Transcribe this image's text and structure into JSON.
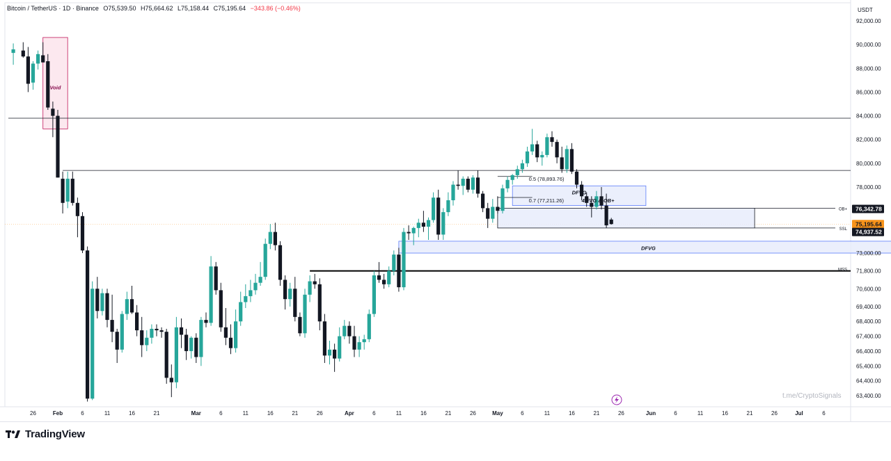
{
  "header": {
    "symbol": "Bitcoin / TetherUS · 1D · Binance",
    "open": "O75,539.50",
    "high": "H75,664.62",
    "low": "L75,158.44",
    "close": "C75,195.64",
    "change": "−343.86 (−0.46%)"
  },
  "brand": {
    "name": "TradingView"
  },
  "watermark": "t.me/CryptoSignals",
  "colors": {
    "up": "#26a69a",
    "down": "#131722",
    "zone_fill": "#e8ecfb",
    "zone_border": "#5b7cfa",
    "void_fill": "#fce4ec",
    "void_border": "#c2185b",
    "price_tag": "#f7931a"
  },
  "chart_data": {
    "type": "candlestick",
    "symbol": "BTC/USDT",
    "interval": "1D",
    "y_unit": "USDT",
    "ylim": [
      62600,
      93400
    ],
    "y_ticks": [
      92000,
      90000,
      88000,
      86000,
      84000,
      82000,
      80000,
      78000,
      73000,
      71800,
      70600,
      69400,
      68400,
      67400,
      66400,
      65400,
      64400,
      63400
    ],
    "y_tick_labels": [
      "92,000.00",
      "90,000.00",
      "88,000.00",
      "86,000.00",
      "84,000.00",
      "82,000.00",
      "80,000.00",
      "78,000.00",
      "73,000.00",
      "71,800.00",
      "70,600.00",
      "69,400.00",
      "68,400.00",
      "67,400.00",
      "66,400.00",
      "65,400.00",
      "64,400.00",
      "63,400.00"
    ],
    "x_ticks": [
      {
        "day": -5,
        "label": "26"
      },
      {
        "day": 0,
        "label": "Feb"
      },
      {
        "day": 5,
        "label": "6"
      },
      {
        "day": 10,
        "label": "11"
      },
      {
        "day": 15,
        "label": "16"
      },
      {
        "day": 20,
        "label": "21"
      },
      {
        "day": 28,
        "label": "Mar"
      },
      {
        "day": 33,
        "label": "6"
      },
      {
        "day": 38,
        "label": "11"
      },
      {
        "day": 43,
        "label": "16"
      },
      {
        "day": 48,
        "label": "21"
      },
      {
        "day": 53,
        "label": "26"
      },
      {
        "day": 59,
        "label": "Apr"
      },
      {
        "day": 64,
        "label": "6"
      },
      {
        "day": 69,
        "label": "11"
      },
      {
        "day": 74,
        "label": "16"
      },
      {
        "day": 79,
        "label": "21"
      },
      {
        "day": 84,
        "label": "26"
      },
      {
        "day": 89,
        "label": "May"
      },
      {
        "day": 94,
        "label": "6"
      },
      {
        "day": 99,
        "label": "11"
      },
      {
        "day": 104,
        "label": "16"
      },
      {
        "day": 109,
        "label": "21"
      },
      {
        "day": 114,
        "label": "26"
      },
      {
        "day": 120,
        "label": "Jun"
      },
      {
        "day": 125,
        "label": "6"
      },
      {
        "day": 130,
        "label": "11"
      },
      {
        "day": 135,
        "label": "16"
      },
      {
        "day": 140,
        "label": "21"
      },
      {
        "day": 145,
        "label": "26"
      },
      {
        "day": 150,
        "label": "Jul"
      },
      {
        "day": 155,
        "label": "6"
      }
    ],
    "candles": [
      {
        "d": -9,
        "o": 89300,
        "h": 90100,
        "l": 88300,
        "c": 89600
      },
      {
        "d": -7,
        "o": 89500,
        "h": 90200,
        "l": 88900,
        "c": 89000
      },
      {
        "d": -6,
        "o": 89000,
        "h": 89800,
        "l": 86000,
        "c": 86700
      },
      {
        "d": -5,
        "o": 86800,
        "h": 88600,
        "l": 86200,
        "c": 88400
      },
      {
        "d": -4,
        "o": 88400,
        "h": 89500,
        "l": 87900,
        "c": 89200
      },
      {
        "d": -3,
        "o": 89100,
        "h": 90200,
        "l": 88500,
        "c": 88500
      },
      {
        "d": -2,
        "o": 88600,
        "h": 89200,
        "l": 84500,
        "c": 84700
      },
      {
        "d": -1,
        "o": 84600,
        "h": 85200,
        "l": 82200,
        "c": 84000
      },
      {
        "d": 0,
        "o": 84000,
        "h": 84500,
        "l": 78800,
        "c": 78800
      },
      {
        "d": 1,
        "o": 78700,
        "h": 79300,
        "l": 76000,
        "c": 76800
      },
      {
        "d": 2,
        "o": 76900,
        "h": 79300,
        "l": 76400,
        "c": 78700
      },
      {
        "d": 3,
        "o": 78700,
        "h": 79300,
        "l": 76600,
        "c": 76800
      },
      {
        "d": 4,
        "o": 76800,
        "h": 77200,
        "l": 74200,
        "c": 75800
      },
      {
        "d": 5,
        "o": 75800,
        "h": 76100,
        "l": 73000,
        "c": 73200
      },
      {
        "d": 6,
        "o": 73200,
        "h": 73500,
        "l": 63000,
        "c": 63200
      },
      {
        "d": 7,
        "o": 63200,
        "h": 71100,
        "l": 63100,
        "c": 70600
      },
      {
        "d": 8,
        "o": 70600,
        "h": 71400,
        "l": 68600,
        "c": 69100
      },
      {
        "d": 9,
        "o": 69100,
        "h": 70600,
        "l": 68800,
        "c": 70300
      },
      {
        "d": 10,
        "o": 70300,
        "h": 70600,
        "l": 68000,
        "c": 68500
      },
      {
        "d": 11,
        "o": 68500,
        "h": 70200,
        "l": 67000,
        "c": 67700
      },
      {
        "d": 12,
        "o": 67700,
        "h": 67900,
        "l": 65600,
        "c": 66500
      },
      {
        "d": 13,
        "o": 66500,
        "h": 69100,
        "l": 66300,
        "c": 68900
      },
      {
        "d": 14,
        "o": 68900,
        "h": 70400,
        "l": 68500,
        "c": 69900
      },
      {
        "d": 15,
        "o": 69900,
        "h": 70800,
        "l": 68900,
        "c": 69000
      },
      {
        "d": 16,
        "o": 69000,
        "h": 69500,
        "l": 67400,
        "c": 67800
      },
      {
        "d": 17,
        "o": 67800,
        "h": 68700,
        "l": 66000,
        "c": 66800
      },
      {
        "d": 18,
        "o": 66800,
        "h": 67800,
        "l": 66400,
        "c": 67300
      },
      {
        "d": 19,
        "o": 67300,
        "h": 68200,
        "l": 66900,
        "c": 67900
      },
      {
        "d": 20,
        "o": 67900,
        "h": 68200,
        "l": 67400,
        "c": 67800
      },
      {
        "d": 21,
        "o": 67800,
        "h": 68000,
        "l": 67300,
        "c": 67700
      },
      {
        "d": 22,
        "o": 67700,
        "h": 67900,
        "l": 64200,
        "c": 64600
      },
      {
        "d": 23,
        "o": 64600,
        "h": 65500,
        "l": 63300,
        "c": 64300
      },
      {
        "d": 24,
        "o": 64300,
        "h": 68700,
        "l": 63900,
        "c": 68000
      },
      {
        "d": 25,
        "o": 68000,
        "h": 68600,
        "l": 66600,
        "c": 67500
      },
      {
        "d": 26,
        "o": 67500,
        "h": 67900,
        "l": 65800,
        "c": 66400
      },
      {
        "d": 27,
        "o": 66400,
        "h": 67400,
        "l": 65900,
        "c": 67300
      },
      {
        "d": 28,
        "o": 67300,
        "h": 67600,
        "l": 65600,
        "c": 66000
      },
      {
        "d": 29,
        "o": 66000,
        "h": 68700,
        "l": 65400,
        "c": 68500
      },
      {
        "d": 30,
        "o": 68500,
        "h": 69000,
        "l": 68000,
        "c": 68300
      },
      {
        "d": 31,
        "o": 68300,
        "h": 72800,
        "l": 68100,
        "c": 72100
      },
      {
        "d": 32,
        "o": 72100,
        "h": 72400,
        "l": 70200,
        "c": 70500
      },
      {
        "d": 33,
        "o": 70500,
        "h": 71000,
        "l": 67700,
        "c": 68000
      },
      {
        "d": 34,
        "o": 68000,
        "h": 69300,
        "l": 66800,
        "c": 67300
      },
      {
        "d": 35,
        "o": 67300,
        "h": 68200,
        "l": 66200,
        "c": 66600
      },
      {
        "d": 36,
        "o": 66600,
        "h": 69200,
        "l": 66300,
        "c": 68400
      },
      {
        "d": 37,
        "o": 68400,
        "h": 70400,
        "l": 68100,
        "c": 69700
      },
      {
        "d": 38,
        "o": 69700,
        "h": 70900,
        "l": 69300,
        "c": 70100
      },
      {
        "d": 39,
        "o": 70100,
        "h": 71200,
        "l": 69700,
        "c": 70500
      },
      {
        "d": 40,
        "o": 70500,
        "h": 71600,
        "l": 70200,
        "c": 71000
      },
      {
        "d": 41,
        "o": 71000,
        "h": 72400,
        "l": 70800,
        "c": 71400
      },
      {
        "d": 42,
        "o": 71400,
        "h": 74100,
        "l": 71200,
        "c": 73700
      },
      {
        "d": 43,
        "o": 73700,
        "h": 75200,
        "l": 73300,
        "c": 74600
      },
      {
        "d": 44,
        "o": 74600,
        "h": 75300,
        "l": 73200,
        "c": 73600
      },
      {
        "d": 45,
        "o": 73600,
        "h": 73900,
        "l": 70800,
        "c": 71200
      },
      {
        "d": 46,
        "o": 71200,
        "h": 71500,
        "l": 69200,
        "c": 69900
      },
      {
        "d": 47,
        "o": 69900,
        "h": 71000,
        "l": 69400,
        "c": 70600
      },
      {
        "d": 48,
        "o": 70600,
        "h": 71400,
        "l": 68400,
        "c": 68700
      },
      {
        "d": 49,
        "o": 68700,
        "h": 69000,
        "l": 67400,
        "c": 67600
      },
      {
        "d": 50,
        "o": 67600,
        "h": 70600,
        "l": 67300,
        "c": 70200
      },
      {
        "d": 51,
        "o": 70200,
        "h": 71500,
        "l": 69700,
        "c": 71100
      },
      {
        "d": 52,
        "o": 71100,
        "h": 71600,
        "l": 70600,
        "c": 70900
      },
      {
        "d": 53,
        "o": 70900,
        "h": 71300,
        "l": 67800,
        "c": 68400
      },
      {
        "d": 54,
        "o": 68400,
        "h": 68900,
        "l": 65600,
        "c": 66100
      },
      {
        "d": 55,
        "o": 66100,
        "h": 67100,
        "l": 65500,
        "c": 66500
      },
      {
        "d": 56,
        "o": 66500,
        "h": 66900,
        "l": 65000,
        "c": 65900
      },
      {
        "d": 57,
        "o": 65900,
        "h": 68000,
        "l": 65700,
        "c": 67400
      },
      {
        "d": 58,
        "o": 67400,
        "h": 68500,
        "l": 67200,
        "c": 68100
      },
      {
        "d": 59,
        "o": 68100,
        "h": 68400,
        "l": 66900,
        "c": 67400
      },
      {
        "d": 60,
        "o": 67400,
        "h": 68100,
        "l": 66000,
        "c": 66500
      },
      {
        "d": 61,
        "o": 66500,
        "h": 67400,
        "l": 66000,
        "c": 67000
      },
      {
        "d": 62,
        "o": 67000,
        "h": 67500,
        "l": 66500,
        "c": 67200
      },
      {
        "d": 63,
        "o": 67200,
        "h": 69200,
        "l": 67000,
        "c": 68900
      },
      {
        "d": 64,
        "o": 68900,
        "h": 71800,
        "l": 68700,
        "c": 71500
      },
      {
        "d": 65,
        "o": 71500,
        "h": 72400,
        "l": 71000,
        "c": 71200
      },
      {
        "d": 66,
        "o": 71200,
        "h": 71600,
        "l": 70600,
        "c": 70900
      },
      {
        "d": 67,
        "o": 70900,
        "h": 72100,
        "l": 70700,
        "c": 71800
      },
      {
        "d": 68,
        "o": 71800,
        "h": 73200,
        "l": 71500,
        "c": 72900
      },
      {
        "d": 69,
        "o": 72900,
        "h": 73400,
        "l": 70400,
        "c": 70700
      },
      {
        "d": 70,
        "o": 70700,
        "h": 74900,
        "l": 70500,
        "c": 74600
      },
      {
        "d": 71,
        "o": 74600,
        "h": 75100,
        "l": 74000,
        "c": 74500
      },
      {
        "d": 72,
        "o": 74500,
        "h": 75000,
        "l": 73600,
        "c": 74900
      },
      {
        "d": 73,
        "o": 74900,
        "h": 75600,
        "l": 74200,
        "c": 75300
      },
      {
        "d": 74,
        "o": 75300,
        "h": 76200,
        "l": 74600,
        "c": 75000
      },
      {
        "d": 75,
        "o": 75000,
        "h": 75700,
        "l": 74000,
        "c": 75500
      },
      {
        "d": 76,
        "o": 75500,
        "h": 77600,
        "l": 75300,
        "c": 77200
      },
      {
        "d": 77,
        "o": 77200,
        "h": 77800,
        "l": 74000,
        "c": 74400
      },
      {
        "d": 78,
        "o": 74400,
        "h": 76400,
        "l": 74000,
        "c": 76100
      },
      {
        "d": 79,
        "o": 76100,
        "h": 77600,
        "l": 75800,
        "c": 77000
      },
      {
        "d": 80,
        "o": 77000,
        "h": 78500,
        "l": 76600,
        "c": 78200
      },
      {
        "d": 81,
        "o": 78200,
        "h": 79400,
        "l": 77800,
        "c": 78100
      },
      {
        "d": 82,
        "o": 78100,
        "h": 78900,
        "l": 77400,
        "c": 78700
      },
      {
        "d": 83,
        "o": 78700,
        "h": 78900,
        "l": 77600,
        "c": 77800
      },
      {
        "d": 84,
        "o": 77800,
        "h": 79000,
        "l": 77500,
        "c": 78800
      },
      {
        "d": 85,
        "o": 78800,
        "h": 79400,
        "l": 77200,
        "c": 77500
      },
      {
        "d": 86,
        "o": 77500,
        "h": 77700,
        "l": 76100,
        "c": 76400
      },
      {
        "d": 87,
        "o": 76400,
        "h": 76800,
        "l": 74900,
        "c": 75600
      },
      {
        "d": 88,
        "o": 75600,
        "h": 77100,
        "l": 75300,
        "c": 76500
      },
      {
        "d": 89,
        "o": 76500,
        "h": 77300,
        "l": 76000,
        "c": 76200
      },
      {
        "d": 90,
        "o": 76200,
        "h": 78200,
        "l": 76000,
        "c": 77900
      },
      {
        "d": 91,
        "o": 77900,
        "h": 78900,
        "l": 77600,
        "c": 78600
      },
      {
        "d": 92,
        "o": 78600,
        "h": 79100,
        "l": 78200,
        "c": 79000
      },
      {
        "d": 93,
        "o": 79000,
        "h": 79800,
        "l": 78700,
        "c": 79500
      },
      {
        "d": 94,
        "o": 79500,
        "h": 80300,
        "l": 79200,
        "c": 80000
      },
      {
        "d": 95,
        "o": 80000,
        "h": 81400,
        "l": 79700,
        "c": 81000
      },
      {
        "d": 96,
        "o": 81000,
        "h": 82900,
        "l": 80700,
        "c": 81600
      },
      {
        "d": 97,
        "o": 81600,
        "h": 81900,
        "l": 80100,
        "c": 80500
      },
      {
        "d": 98,
        "o": 80500,
        "h": 81000,
        "l": 79800,
        "c": 80700
      },
      {
        "d": 99,
        "o": 80700,
        "h": 82500,
        "l": 80500,
        "c": 82200
      },
      {
        "d": 100,
        "o": 82200,
        "h": 82700,
        "l": 81400,
        "c": 81800
      },
      {
        "d": 101,
        "o": 81800,
        "h": 82000,
        "l": 80000,
        "c": 80500
      },
      {
        "d": 102,
        "o": 80500,
        "h": 81400,
        "l": 79200,
        "c": 79500
      },
      {
        "d": 103,
        "o": 79500,
        "h": 81500,
        "l": 79200,
        "c": 81200
      },
      {
        "d": 104,
        "o": 81200,
        "h": 81700,
        "l": 79100,
        "c": 79300
      },
      {
        "d": 105,
        "o": 79300,
        "h": 79500,
        "l": 77900,
        "c": 78200
      },
      {
        "d": 106,
        "o": 78200,
        "h": 78500,
        "l": 77000,
        "c": 77300
      },
      {
        "d": 107,
        "o": 77300,
        "h": 77600,
        "l": 76500,
        "c": 76800
      },
      {
        "d": 108,
        "o": 76800,
        "h": 77300,
        "l": 75700,
        "c": 76500
      },
      {
        "d": 109,
        "o": 76500,
        "h": 77700,
        "l": 76300,
        "c": 77300
      },
      {
        "d": 110,
        "o": 77300,
        "h": 78000,
        "l": 76300,
        "c": 76600
      },
      {
        "d": 111,
        "o": 76600,
        "h": 77500,
        "l": 74900,
        "c": 75100
      },
      {
        "d": 112,
        "o": 75540,
        "h": 75665,
        "l": 75158,
        "c": 75196
      }
    ],
    "horizontal_lines": [
      {
        "name": "level-84k",
        "y": 83800,
        "x_from": -10,
        "color": "#131722",
        "width": 0.8
      },
      {
        "name": "level-79-4k",
        "y": 79400,
        "x_from": 1,
        "color": "#131722",
        "width": 0.8
      },
      {
        "name": "mss-line",
        "y": 71800,
        "x_from": 51,
        "color": "#000000",
        "width": 2
      }
    ],
    "zones": [
      {
        "name": "void-zone",
        "x0": -3,
        "x1": 2,
        "y0": 82900,
        "y1": 90600,
        "fill": "#fce4ec",
        "stroke": "#c2185b"
      },
      {
        "name": "dfvg-upper-zone",
        "x0": 92,
        "x1": 119,
        "y0": 76600,
        "y1": 78100,
        "fill": "#e8ecfb",
        "stroke": "#5b7cfa"
      },
      {
        "name": "ob-zone",
        "x0": 89,
        "x1": 141,
        "y0": 74900,
        "y1": 76400,
        "fill": "#e8ecfb",
        "stroke": "#131722"
      },
      {
        "name": "dfvg-lower-zone",
        "x0": 69,
        "x1": 170,
        "y0": 73000,
        "y1": 73900,
        "fill": "#e8ecfb",
        "stroke": "#5b7cfa"
      }
    ],
    "fib_lines": [
      {
        "name": "fib-0-5",
        "y": 78894,
        "x0": 89,
        "x1": 96
      },
      {
        "name": "fib-0-7",
        "y": 77211,
        "x0": 89,
        "x1": 96
      }
    ],
    "annotations": [
      {
        "name": "void-label",
        "text": "Void",
        "x": -0.5,
        "y": 86400,
        "italic": true,
        "color": "#880e4f"
      },
      {
        "name": "dfvg-upper-label",
        "text": "DFVG",
        "x": 105.5,
        "y": 77600,
        "italic": true
      },
      {
        "name": "fvg-ob-label",
        "text": "4 FVG & OB+",
        "x": 106,
        "y": 77000,
        "italic": true
      },
      {
        "name": "fib-0-5-label",
        "text": "0.5 (78,893.76)",
        "x": 95.3,
        "y": 78700
      },
      {
        "name": "fib-0-7-label",
        "text": "0.7 (77,211.26)",
        "x": 95.3,
        "y": 77000
      },
      {
        "name": "dfvg-lower-label",
        "text": "DFVG",
        "x": 119.5,
        "y": 73400,
        "italic": true
      },
      {
        "name": "ob-plus-label",
        "text": "OB+",
        "x": 168.5,
        "y": 76400
      },
      {
        "name": "ssl-label",
        "text": "SSL",
        "x": 168.5,
        "y": 74900
      },
      {
        "name": "mss-label",
        "text": "MSS",
        "x": 169,
        "y": 71950
      }
    ],
    "price_tags": [
      {
        "name": "tag-ob",
        "text": "76,342.78",
        "y": 76343,
        "bg": "#131722",
        "fg": "#ffffff"
      },
      {
        "name": "tag-last",
        "text": "75,195.64",
        "y": 75196,
        "bg": "#f7931a",
        "fg": "#131722"
      },
      {
        "name": "tag-ssl",
        "text": "74,937.52",
        "y": 74600,
        "bg": "#131722",
        "fg": "#ffffff"
      }
    ]
  }
}
